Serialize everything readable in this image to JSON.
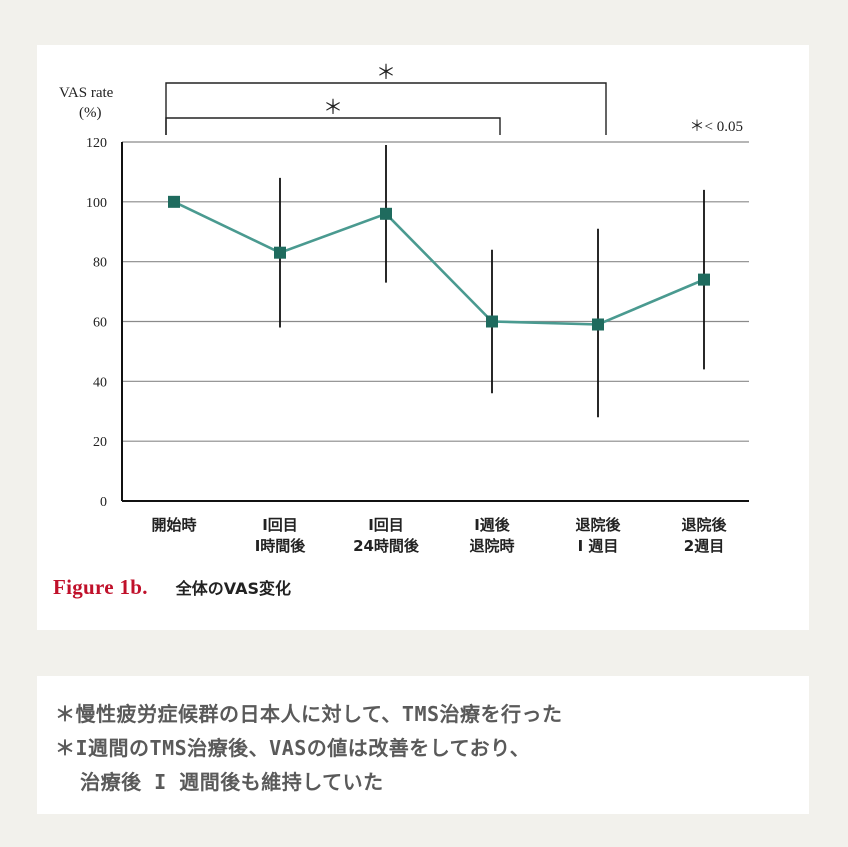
{
  "chart_data": {
    "type": "line",
    "ylabel_line1": "VAS rate",
    "ylabel_line2": "(%)",
    "ylim": [
      0,
      120
    ],
    "yticks": [
      0,
      20,
      40,
      60,
      80,
      100,
      120
    ],
    "grid": true,
    "categories": [
      [
        "開始時",
        ""
      ],
      [
        "I回目",
        "I時間後"
      ],
      [
        "I回目",
        "24時間後"
      ],
      [
        "I週後",
        "退院時"
      ],
      [
        "退院後",
        "I 週目"
      ],
      [
        "退院後",
        "2週目"
      ]
    ],
    "series": [
      {
        "values": [
          100,
          83,
          96,
          60,
          59,
          74
        ],
        "error_low": [
          100,
          58,
          73,
          36,
          28,
          44
        ],
        "error_high": [
          100,
          108,
          119,
          84,
          91,
          104
        ],
        "color": "#1f6b5e",
        "line_color": "#4a9a90"
      }
    ],
    "significance": [
      {
        "from": 0,
        "to": 3,
        "label": "＊"
      },
      {
        "from": 0,
        "to": 4,
        "label": "＊"
      }
    ],
    "p_note": "＊< 0.05"
  },
  "caption": {
    "figure_label": "Figure  1b.",
    "text": "全体のVAS変化"
  },
  "notes": [
    "＊慢性疲労症候群の日本人に対して、TMS治療を行った",
    "＊I週間のTMS治療後、VASの値は改善をしており、",
    "  治療後 I 週間後も維持していた"
  ]
}
